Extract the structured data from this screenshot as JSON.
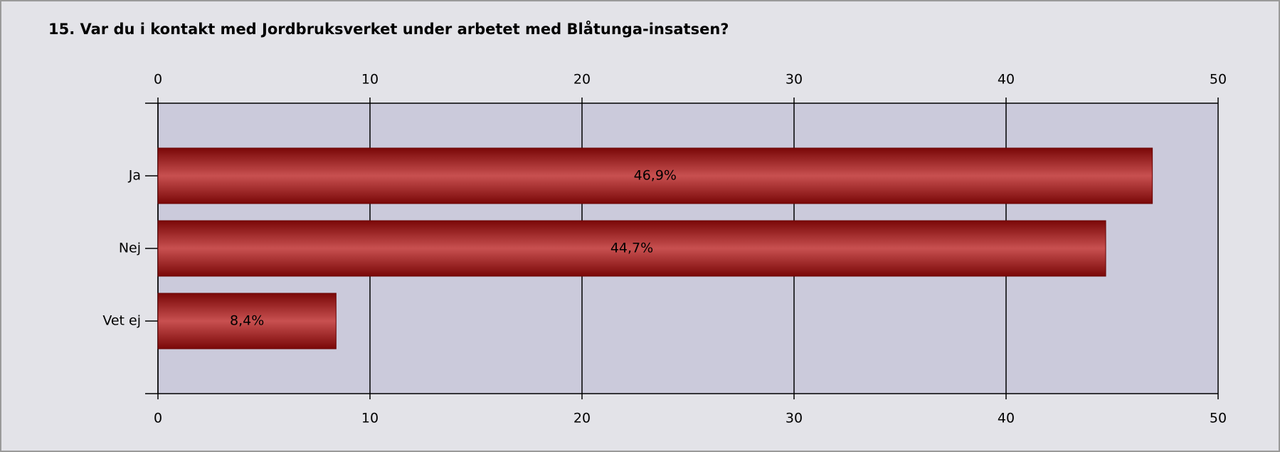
{
  "chart_data": {
    "type": "bar",
    "orientation": "horizontal",
    "title": "15. Var du i kontakt med Jordbruksverket under arbetet med Blåtunga-insatsen?",
    "categories": [
      "Ja",
      "Nej",
      "Vet ej"
    ],
    "values": [
      46.9,
      44.7,
      8.4
    ],
    "value_labels": [
      "46,9%",
      "44,7%",
      "8,4%"
    ],
    "color": "#c85050",
    "xlim": [
      0,
      50
    ],
    "xticks": [
      0,
      10,
      20,
      30,
      40,
      50
    ],
    "grid": true
  }
}
